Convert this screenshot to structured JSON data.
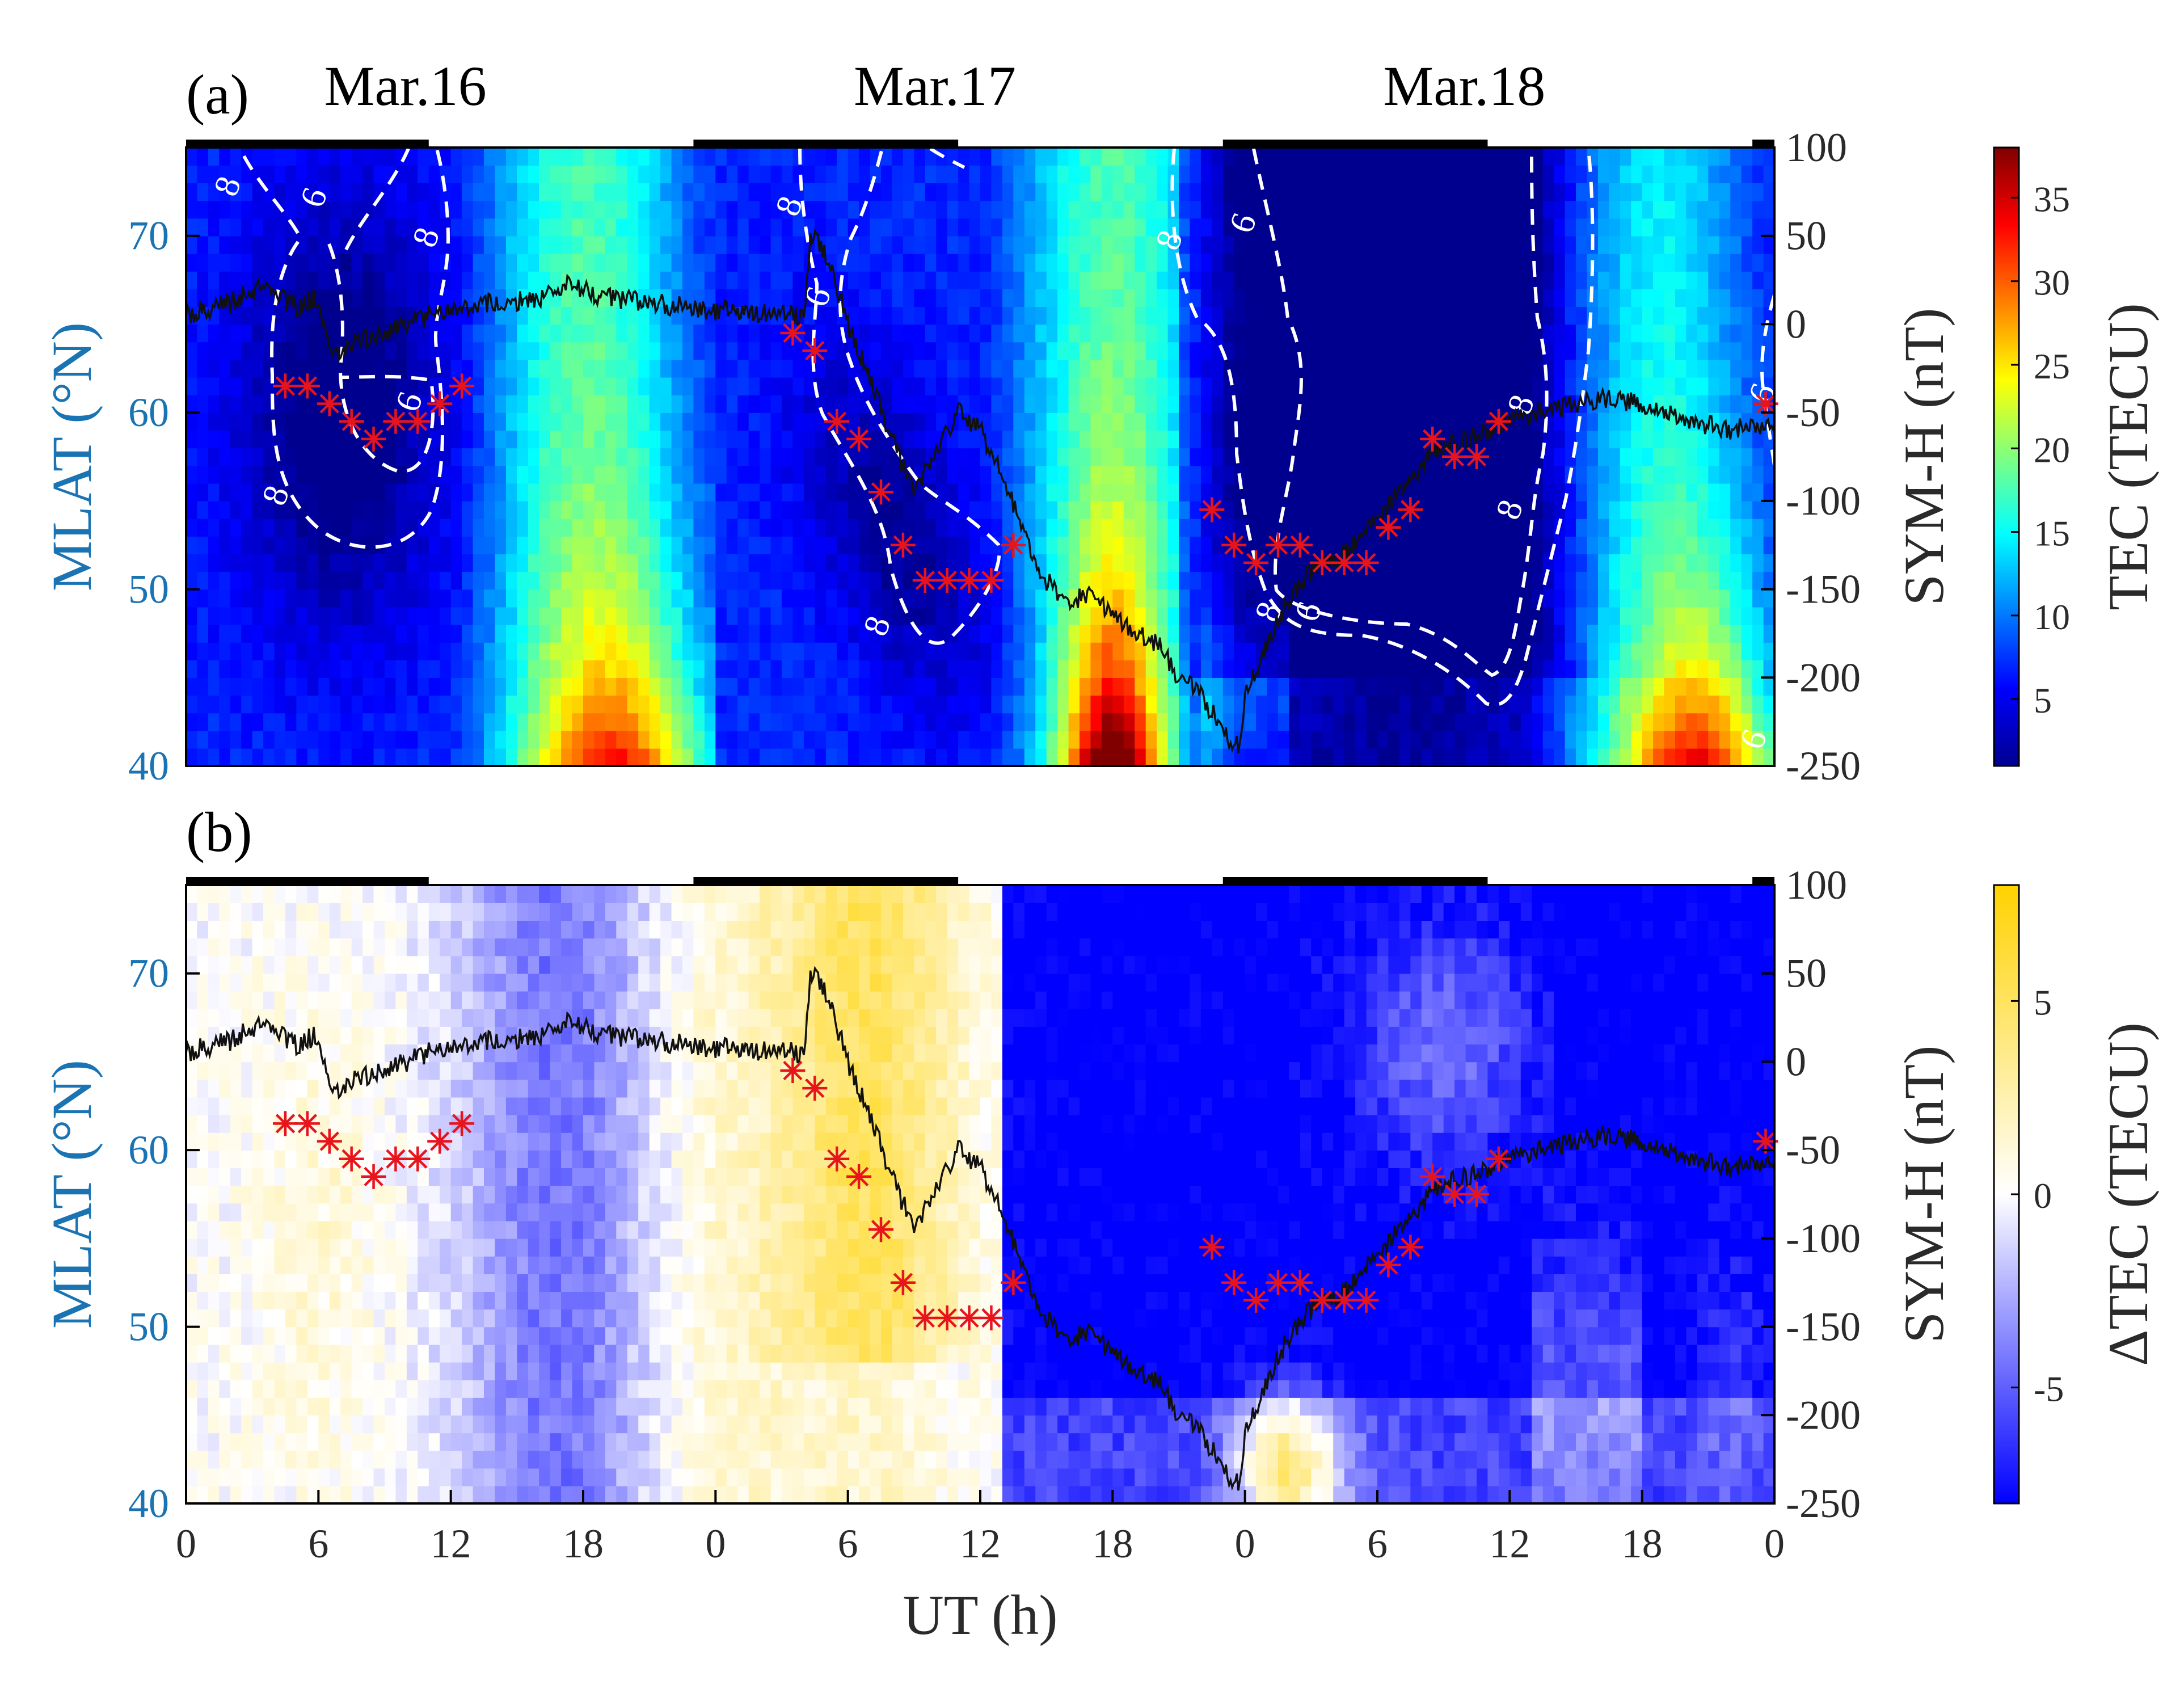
{
  "chart_data": [
    {
      "type": "heatmap",
      "panel_label": "(a)",
      "day_labels": [
        "Mar.16",
        "Mar.17",
        "Mar.18"
      ],
      "xlabel": "UT (h)",
      "x_tick_labels": [
        "0",
        "6",
        "12",
        "18",
        "0",
        "6",
        "12",
        "18",
        "0",
        "6",
        "12",
        "18",
        "0"
      ],
      "xlim_hours": [
        0,
        72
      ],
      "ylabel_left": "MLAT (°N)",
      "y_ticks_left": [
        40,
        50,
        60,
        70
      ],
      "ylim_left": [
        40,
        75
      ],
      "ylabel_right": "SYM-H (nT)",
      "y_ticks_right": [
        100,
        50,
        0,
        -50,
        -100,
        -150,
        -200,
        -250
      ],
      "ylim_right": [
        -250,
        100
      ],
      "colorbar": {
        "label": "TEC (TECU)",
        "ticks": [
          5,
          10,
          15,
          20,
          25,
          30,
          35
        ],
        "range": [
          1,
          38
        ],
        "colormap": "jet"
      },
      "night_bars_hours": [
        [
          0,
          11
        ],
        [
          23,
          35
        ],
        [
          47,
          59
        ],
        [
          71,
          72
        ]
      ],
      "contours": [
        {
          "level": "8",
          "name": "trough outer boundary Mar.16"
        },
        {
          "level": "6",
          "name": "trough core Mar.16"
        },
        {
          "level": "8",
          "name": "trough boundary Mar.17"
        },
        {
          "level": "8",
          "name": "trough boundary Mar.18"
        },
        {
          "level": "6",
          "name": "trough core Mar.18"
        }
      ],
      "contour_labels": [
        "8",
        "6",
        "8",
        "6",
        "8",
        "8",
        "6",
        "8",
        "8",
        "6",
        "8",
        "6",
        "8",
        "8",
        "6",
        "6"
      ],
      "trough_minimum": {
        "ut_hour": [
          4.5,
          5.5,
          6.5,
          7.5,
          8.5,
          9.5,
          10.5,
          11.5,
          12.5,
          27.5,
          28.5,
          29.5,
          30.5,
          31.5,
          32.5,
          33.5,
          34.5,
          35.5,
          36.5,
          37.5,
          46.5,
          47.5,
          48.5,
          49.5,
          50.5,
          51.5,
          52.5,
          53.5,
          54.5,
          55.5,
          56.5,
          57.5,
          58.5,
          59.5,
          71.6
        ],
        "mlat": [
          61.5,
          61.5,
          60.5,
          59.5,
          58.5,
          59.5,
          59.5,
          60.5,
          61.5,
          64.5,
          63.5,
          59.5,
          58.5,
          55.5,
          52.5,
          50.5,
          50.5,
          50.5,
          50.5,
          52.5,
          54.5,
          52.5,
          51.5,
          52.5,
          52.5,
          51.5,
          51.5,
          51.5,
          53.5,
          54.5,
          58.5,
          57.5,
          57.5,
          59.5,
          60.5
        ]
      },
      "sym_h": {
        "ut_hour": [
          0,
          2,
          3,
          4,
          5,
          6,
          6.5,
          7,
          8,
          9,
          10,
          11,
          12,
          14,
          16,
          17.5,
          18,
          19,
          21,
          24,
          27,
          28,
          28.3,
          29,
          30,
          31,
          32,
          33,
          34,
          35,
          36,
          37,
          38,
          39,
          40,
          41,
          42,
          43,
          44,
          45,
          46,
          47,
          47.7,
          48,
          49,
          50,
          51,
          52,
          53,
          54,
          55,
          56,
          57,
          58,
          60,
          62,
          64,
          66,
          68,
          70,
          72
        ],
        "values": [
          5,
          12,
          20,
          18,
          10,
          15,
          -10,
          -15,
          -8,
          -5,
          0,
          5,
          10,
          12,
          15,
          25,
          20,
          15,
          12,
          8,
          5,
          5,
          50,
          40,
          0,
          -30,
          -65,
          -95,
          -70,
          -50,
          -60,
          -85,
          -120,
          -145,
          -160,
          -150,
          -165,
          -175,
          -180,
          -200,
          -210,
          -230,
          -240,
          -210,
          -180,
          -155,
          -140,
          -135,
          -125,
          -110,
          -95,
          -80,
          -70,
          -65,
          -55,
          -48,
          -42,
          -45,
          -55,
          -60,
          -55
        ]
      }
    },
    {
      "type": "heatmap",
      "panel_label": "(b)",
      "xlabel": "UT (h)",
      "x_tick_labels": [
        "0",
        "6",
        "12",
        "18",
        "0",
        "6",
        "12",
        "18",
        "0",
        "6",
        "12",
        "18",
        "0"
      ],
      "xlim_hours": [
        0,
        72
      ],
      "ylabel_left": "MLAT (°N)",
      "y_ticks_left": [
        40,
        50,
        60,
        70
      ],
      "ylim_left": [
        40,
        75
      ],
      "ylabel_right": "SYM-H (nT)",
      "y_ticks_right": [
        100,
        50,
        0,
        -50,
        -100,
        -150,
        -200,
        -250
      ],
      "ylim_right": [
        -250,
        100
      ],
      "colorbar": {
        "label": "ΔTEC (TECU)",
        "ticks": [
          5,
          0,
          -5
        ],
        "range": [
          -8,
          8
        ],
        "colormap": "blue-white-yellow"
      },
      "night_bars_hours": [
        [
          0,
          11
        ],
        [
          23,
          35
        ],
        [
          47,
          59
        ],
        [
          71,
          72
        ]
      ],
      "trough_minimum": "same as panel (a)",
      "sym_h": "same as panel (a)"
    }
  ]
}
